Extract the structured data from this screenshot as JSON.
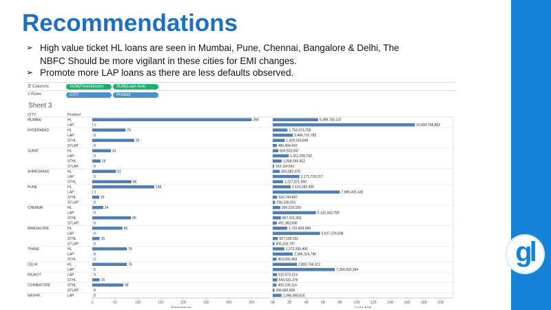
{
  "title": "Recommendations",
  "bullets": [
    "High value ticket HL loans are seen in Mumbai, Pune, Chennai, Bangalore & Delhi, The NBFC Should be more vigilant in these cities for EMI changes.",
    "Promote more LAP loans as there are less defaults observed."
  ],
  "bullet_arrow": "➢",
  "logo_text": "gl",
  "colors": {
    "accent": "#1e6fc1",
    "bar": "#4f7fb3",
    "stripe": "#1583d8"
  },
  "shelves": {
    "columns_label": "Columns",
    "rows_label": "Rows",
    "columns_pills": [
      "SUM(Foreclosure)",
      "SUM(Loan Amt)"
    ],
    "rows_pills": [
      "CITY",
      "Product"
    ]
  },
  "sheet_title": "Sheet 3",
  "chart_data": {
    "type": "bar",
    "row_headers": [
      "CITY",
      "Product"
    ],
    "rows": [
      {
        "city": "MUMBAI",
        "product": "HL",
        "foreclosure": 350,
        "foreclosure_label": "350",
        "loan": 5399783147,
        "loan_label": "5,399,783,147"
      },
      {
        "city": "",
        "product": "LAP",
        "foreclosure": 1,
        "foreclosure_label": "1",
        "loan": 16930758862,
        "loan_label": "16,930,758,862"
      },
      {
        "city": "HYDERABAD",
        "product": "HL",
        "foreclosure": 73,
        "foreclosure_label": "73",
        "loan": 1754373758,
        "loan_label": "1,754,373,758"
      },
      {
        "city": "",
        "product": "LAP",
        "foreclosure": 0,
        "foreclosure_label": "0",
        "loan": 2406712782,
        "loan_label": "2,406,712,782"
      },
      {
        "city": "",
        "product": "STHL",
        "foreclosure": 92,
        "foreclosure_label": "92",
        "loan": 1429418849,
        "loan_label": "1,429,418,849"
      },
      {
        "city": "",
        "product": "STLAP",
        "foreclosure": 0,
        "foreclosure_label": "0",
        "loan": 480404410,
        "loan_label": "480,404,410"
      },
      {
        "city": "SURAT",
        "product": "HL",
        "foreclosure": 41,
        "foreclosure_label": "41",
        "loan": 669523047,
        "loan_label": "669,523,047"
      },
      {
        "city": "",
        "product": "LAP",
        "foreclosure": 0,
        "foreclosure_label": "0",
        "loan": 1911206792,
        "loan_label": "1,911,206,792"
      },
      {
        "city": "",
        "product": "STHL",
        "foreclosure": 18,
        "foreclosure_label": "18",
        "loan": 1068569452,
        "loan_label": "1,068,569,452"
      },
      {
        "city": "",
        "product": "STLAP",
        "foreclosure": 0,
        "foreclosure_label": "0",
        "loan": 163114541,
        "loan_label": "163,114,541"
      },
      {
        "city": "AHMEDABAD",
        "product": "HL",
        "foreclosure": 52,
        "foreclosure_label": "52",
        "loan": 843582976,
        "loan_label": "843,582,976"
      },
      {
        "city": "",
        "product": "LAP",
        "foreclosure": 0,
        "foreclosure_label": "0",
        "loan": 3171718217,
        "loan_label": "3,171,718,217"
      },
      {
        "city": "",
        "product": "STHL",
        "foreclosure": 86,
        "foreclosure_label": "86",
        "loan": 1227871990,
        "loan_label": "1,227,871,990"
      },
      {
        "city": "PUNE",
        "product": "HL",
        "foreclosure": 136,
        "foreclosure_label": "136",
        "loan": 2133342300,
        "loan_label": "2,133,342,300"
      },
      {
        "city": "",
        "product": "LAP",
        "foreclosure": 1,
        "foreclosure_label": "1",
        "loan": 7986492430,
        "loan_label": "7,986,492,430"
      },
      {
        "city": "",
        "product": "STHL",
        "foreclosure": 15,
        "foreclosure_label": "15",
        "loan": 520744897,
        "loan_label": "520,744,897"
      },
      {
        "city": "",
        "product": "STLAP",
        "foreclosure": 0,
        "foreclosure_label": "0",
        "loan": 296238001,
        "loan_label": "296,238,001"
      },
      {
        "city": "CHENNAI",
        "product": "HL",
        "foreclosure": 24,
        "foreclosure_label": "24",
        "loan": 906218150,
        "loan_label": "906,218,150"
      },
      {
        "city": "",
        "product": "LAP",
        "foreclosure": 0,
        "foreclosure_label": "0",
        "loan": 5132443769,
        "loan_label": "5,132,443,769"
      },
      {
        "city": "",
        "product": "STHL",
        "foreclosure": 85,
        "foreclosure_label": "85",
        "loan": 967151303,
        "loan_label": "967,151,303"
      },
      {
        "city": "",
        "product": "STLAP",
        "foreclosure": 0,
        "foreclosure_label": "0",
        "loan": 491383936,
        "loan_label": "491,383,936"
      },
      {
        "city": "BANGALORE",
        "product": "HL",
        "foreclosure": 66,
        "foreclosure_label": "66",
        "loan": 1722429689,
        "loan_label": "1,722,429,689"
      },
      {
        "city": "",
        "product": "LAP",
        "foreclosure": 0,
        "foreclosure_label": "0",
        "loan": 5627274598,
        "loan_label": "5,627,274,598"
      },
      {
        "city": "",
        "product": "STHL",
        "foreclosure": 16,
        "foreclosure_label": "16",
        "loan": 607199101,
        "loan_label": "607,199,101"
      },
      {
        "city": "",
        "product": "STLAP",
        "foreclosure": 0,
        "foreclosure_label": "0",
        "loan": 205332797,
        "loan_label": "205,332,797"
      },
      {
        "city": "THANE",
        "product": "HL",
        "foreclosure": 76,
        "foreclosure_label": "76",
        "loan": 1372339400,
        "loan_label": "1,372,339,400"
      },
      {
        "city": "",
        "product": "LAP",
        "foreclosure": 0,
        "foreclosure_label": "0",
        "loan": 2384314786,
        "loan_label": "2,384,314,786"
      },
      {
        "city": "",
        "product": "STHL",
        "foreclosure": 0,
        "foreclosure_label": "0",
        "loan": 453565469,
        "loan_label": "453,565,469"
      },
      {
        "city": "DELHI",
        "product": "HL",
        "foreclosure": 76,
        "foreclosure_label": "76",
        "loan": 2883766312,
        "loan_label": "2,883,766,312"
      },
      {
        "city": "",
        "product": "LAP",
        "foreclosure": 0,
        "foreclosure_label": "0",
        "loan": 7394003394,
        "loan_label": "7,394,003,394"
      },
      {
        "city": "RAJKOT",
        "product": "LAP",
        "foreclosure": 0,
        "foreclosure_label": "0",
        "loan": 510573214,
        "loan_label": "510,573,214"
      },
      {
        "city": "",
        "product": "STHL",
        "foreclosure": 16,
        "foreclosure_label": "16",
        "loan": 543531376,
        "loan_label": "543,531,376"
      },
      {
        "city": "COIMBATORE",
        "product": "STHL",
        "foreclosure": 68,
        "foreclosure_label": "68",
        "loan": 450109114,
        "loan_label": "450,109,114"
      },
      {
        "city": "",
        "product": "STLAP",
        "foreclosure": 0,
        "foreclosure_label": "0",
        "loan": 206062826,
        "loan_label": "206,062,826"
      },
      {
        "city": "NASHIK",
        "product": "LAP",
        "foreclosure": 0,
        "foreclosure_label": "0",
        "loan": 1046068616,
        "loan_label": "1,046,068,616"
      }
    ],
    "x_axis_foreclosure": {
      "label": "Foreclosure",
      "range": [
        0,
        390
      ],
      "ticks": [
        0,
        50,
        100,
        150,
        200,
        250,
        300,
        350
      ],
      "tick_labels": [
        "0",
        "50",
        "100",
        "150",
        "200",
        "250",
        "300",
        "350"
      ]
    },
    "x_axis_loan": {
      "label": "Loan Amt",
      "range": [
        0,
        21500000000
      ],
      "ticks": [
        0,
        2000000000.0,
        4000000000.0,
        6000000000.0,
        8000000000.0,
        10000000000.0,
        12000000000.0,
        14000000000.0,
        16000000000.0,
        18000000000.0,
        20000000000.0
      ],
      "tick_labels": [
        "0B",
        "2B",
        "4B",
        "6B",
        "8B",
        "10B",
        "12B",
        "14B",
        "16B",
        "18B",
        "20B"
      ]
    }
  }
}
